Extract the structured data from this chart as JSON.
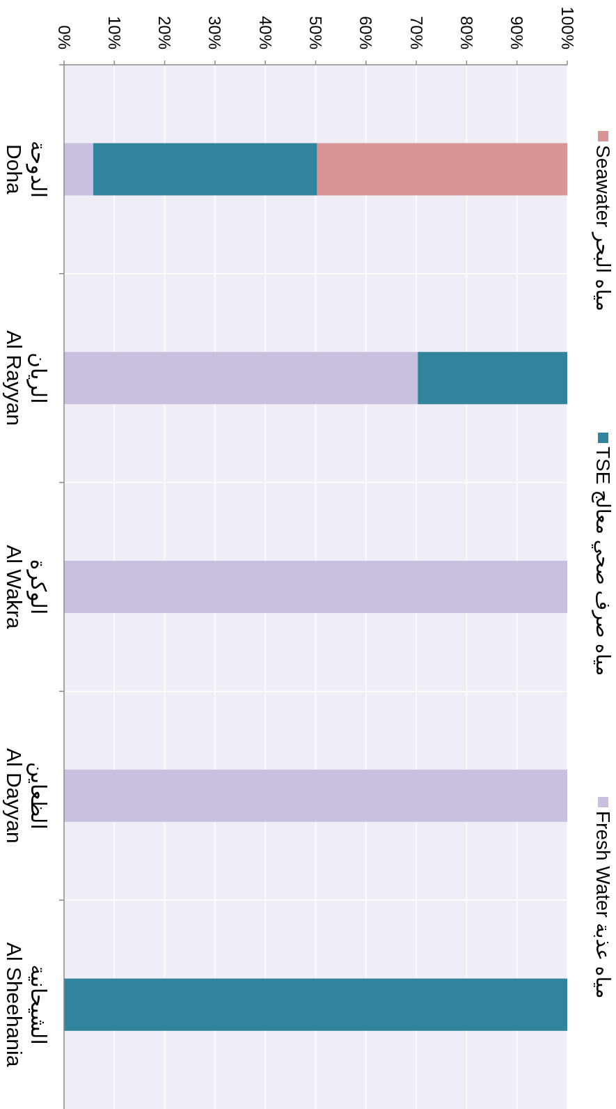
{
  "chart_data": {
    "type": "bar",
    "orientation": "horizontal",
    "stacked": true,
    "categories": [
      "الدوحة\nDoha",
      "الريان\nAl Rayyan",
      "الوكرة\nAl Wakra",
      "الظعاين\nAl Dayyan",
      "الشيحانية\nAl Sheehania"
    ],
    "series": [
      {
        "name": "Fresh Water مياه عذبة",
        "color": "#c9bfdf",
        "values": [
          5.8,
          70.3,
          100,
          100,
          0
        ]
      },
      {
        "name": "TSE مياه صرف صحي معالج",
        "color": "#31849b",
        "values": [
          44.5,
          29.7,
          0,
          0,
          100
        ]
      },
      {
        "name": "Seawater مياه البحر",
        "color": "#d99594",
        "values": [
          49.7,
          0,
          0,
          0,
          0
        ]
      }
    ],
    "xlim": [
      0,
      100
    ],
    "xticks": [
      {
        "value": 0,
        "label": "0%"
      },
      {
        "value": 10,
        "label": "10%"
      },
      {
        "value": 20,
        "label": "20%"
      },
      {
        "value": 30,
        "label": "30%"
      },
      {
        "value": 40,
        "label": "40%"
      },
      {
        "value": 50,
        "label": "50%"
      },
      {
        "value": 60,
        "label": "60%"
      },
      {
        "value": 70,
        "label": "70%"
      },
      {
        "value": 80,
        "label": "80%"
      },
      {
        "value": 90,
        "label": "90%"
      },
      {
        "value": 100,
        "label": "100%"
      }
    ],
    "grid": true,
    "legend": "right"
  }
}
